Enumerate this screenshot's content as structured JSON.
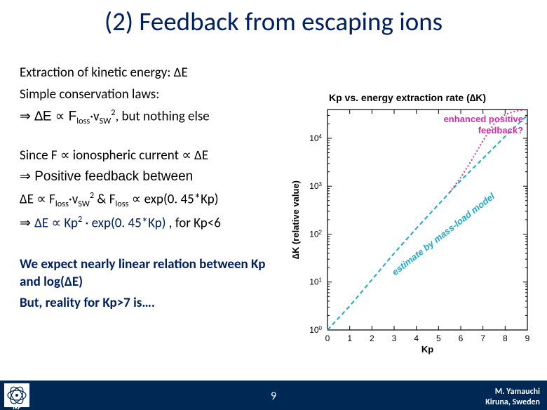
{
  "title": "(2) Feedback from escaping ions",
  "body": {
    "p1a": "Extraction of kinetic energy: ∆E",
    "p1b": "Simple conservation laws:",
    "p1c_pre": "⇒ ∆E ∝ F",
    "p1c_sub": "loss",
    "p1c_mid": "·v",
    "p1c_sub2": "SW",
    "p1c_sup": "2",
    "p1c_post": ", but nothing else",
    "p2a": "Since F ∝ ionospheric current ∝ ∆E",
    "p2b": "⇒ Positive feedback between",
    "p2c_pre": "∆E ∝ F",
    "p2c_sub": "loss",
    "p2c_mid": "·v",
    "p2c_sub2": "SW",
    "p2c_sup": "2",
    "p2c_amp": "  &  F",
    "p2c_sub3": "loss",
    "p2c_post": " ∝ exp(0. 45*Kp)",
    "p2d_pre": "⇒ ",
    "p2d_main": "∆E ∝ Kp",
    "p2d_sup": "2",
    "p2d_post": " · exp(0. 45*Kp)",
    "p2d_tail": "  , for Kp<6",
    "p3a": "We expect nearly linear relation between Kp and log(∆E)",
    "p3b": "But, reality for Kp>7 is…."
  },
  "chart": {
    "type": "line-logy",
    "title": "Kp  vs.  energy extraction rate (∆K)",
    "xlabel": "Kp",
    "ylabel": "∆K (relative value)",
    "xlim": [
      0,
      9
    ],
    "xticks": [
      0,
      1,
      2,
      3,
      4,
      5,
      6,
      7,
      8,
      9
    ],
    "ylim_log10": [
      0,
      4.6
    ],
    "yticks_log10": [
      0,
      1,
      2,
      3,
      4
    ],
    "ytick_labels": [
      "10^0",
      "10^1",
      "10^2",
      "10^3",
      "10^4"
    ],
    "plot_bg": "#ffffff",
    "axis_color": "#000000",
    "series": [
      {
        "name": "estimate by mass-load model",
        "color": "#1fa8c9",
        "dash": "6,4",
        "width": 2,
        "data_log10": [
          [
            0,
            0.0
          ],
          [
            1,
            0.5
          ],
          [
            2,
            1.05
          ],
          [
            3,
            1.6
          ],
          [
            4,
            2.12
          ],
          [
            5,
            2.62
          ],
          [
            6,
            3.12
          ],
          [
            7,
            3.58
          ],
          [
            8,
            4.04
          ],
          [
            9,
            4.48
          ]
        ]
      },
      {
        "name": "enhanced positive feedback?",
        "color": "#d62da1",
        "dash": "2,3",
        "width": 2,
        "data_log10": [
          [
            5.5,
            2.87
          ],
          [
            6,
            3.18
          ],
          [
            6.5,
            3.55
          ],
          [
            7,
            3.95
          ],
          [
            7.5,
            4.3
          ],
          [
            8,
            4.5
          ],
          [
            8.5,
            4.57
          ],
          [
            9,
            4.6
          ]
        ]
      }
    ],
    "annotations": {
      "pos_fb": {
        "text": "enhanced positive",
        "text2": "feedback?",
        "color": "#d62da1"
      },
      "estimate": {
        "text": "estimate by mass-load model",
        "color": "#1fa8c9"
      }
    }
  },
  "footer": {
    "slidenum": "9",
    "credit1": "M. Yamauchi",
    "credit2": "Kiruna, Sweden",
    "logo_label": "IRF"
  }
}
